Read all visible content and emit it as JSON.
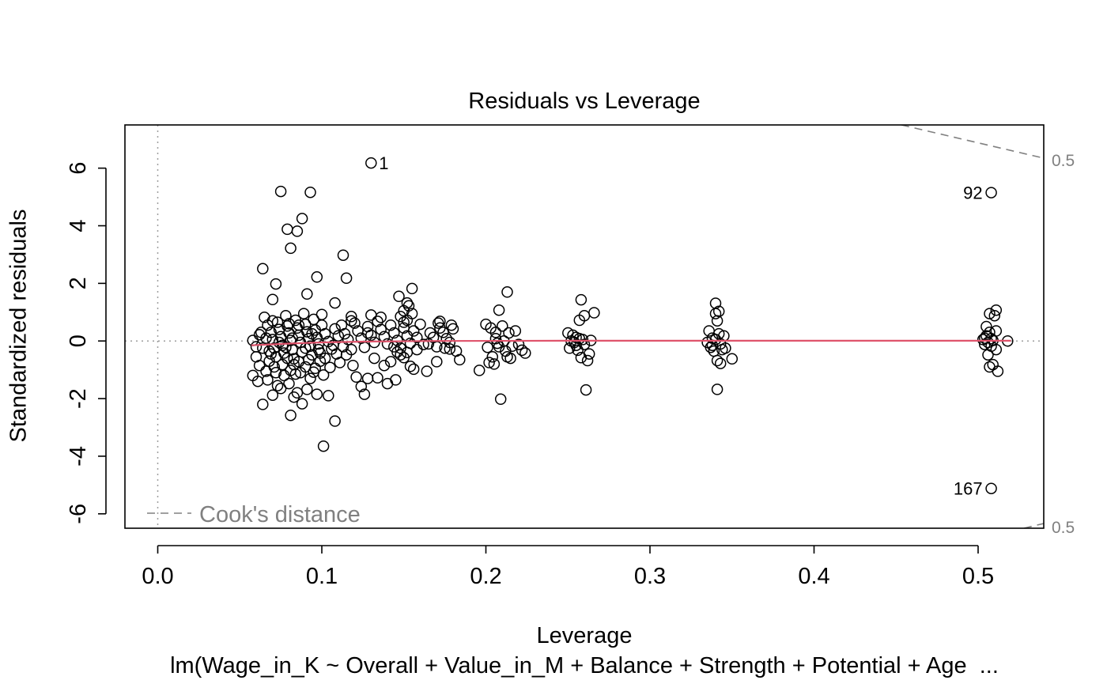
{
  "chart_data": {
    "type": "scatter",
    "title": "Residuals vs Leverage",
    "xlabel": "Leverage",
    "ylabel": "Standardized residuals",
    "caption": "lm(Wage_in_K ~ Overall + Value_in_M + Balance + Strength + Potential + Age  ...",
    "xlim": [
      -0.02,
      0.54
    ],
    "ylim": [
      -6.5,
      7.5
    ],
    "x_ticks": [
      "0.0",
      "0.1",
      "0.2",
      "0.3",
      "0.4",
      "0.5"
    ],
    "y_ticks": [
      "-6",
      "-4",
      "-2",
      "0",
      "2",
      "4",
      "6"
    ],
    "grid": false,
    "legend": {
      "position": "bottom-left",
      "entries": [
        {
          "label": "Cook's distance",
          "style": "dashed",
          "color": "#808080"
        }
      ]
    },
    "cook_contour_label": "0.5",
    "smoother_color": "#DF536B",
    "point_color": "#000000",
    "labeled_points": [
      {
        "label": "1",
        "x": 0.13,
        "y": 6.18,
        "side": "right"
      },
      {
        "label": "92",
        "x": 0.508,
        "y": 5.15,
        "side": "left"
      },
      {
        "label": "167",
        "x": 0.508,
        "y": -5.12,
        "side": "left"
      }
    ],
    "smoother": [
      [
        0.057,
        -0.15
      ],
      [
        0.08,
        -0.09
      ],
      [
        0.1,
        -0.05
      ],
      [
        0.13,
        -0.02
      ],
      [
        0.17,
        0.0
      ],
      [
        0.25,
        0.01
      ],
      [
        0.35,
        0.01
      ],
      [
        0.45,
        0.01
      ],
      [
        0.52,
        0.01
      ]
    ],
    "points": [
      [
        0.075,
        5.19
      ],
      [
        0.093,
        5.16
      ],
      [
        0.088,
        4.25
      ],
      [
        0.079,
        3.88
      ],
      [
        0.085,
        3.81
      ],
      [
        0.081,
        3.22
      ],
      [
        0.113,
        2.98
      ],
      [
        0.064,
        2.51
      ],
      [
        0.097,
        2.22
      ],
      [
        0.115,
        2.18
      ],
      [
        0.072,
        1.98
      ],
      [
        0.155,
        1.82
      ],
      [
        0.213,
        1.7
      ],
      [
        0.091,
        1.63
      ],
      [
        0.147,
        1.55
      ],
      [
        0.258,
        1.43
      ],
      [
        0.07,
        1.44
      ],
      [
        0.34,
        1.31
      ],
      [
        0.152,
        1.32
      ],
      [
        0.108,
        1.32
      ],
      [
        0.208,
        1.07
      ],
      [
        0.342,
        1.03
      ],
      [
        0.266,
        0.98
      ],
      [
        0.1,
        0.92
      ],
      [
        0.118,
        0.7
      ],
      [
        0.18,
        0.42
      ],
      [
        0.26,
        0.88
      ],
      [
        0.34,
        0.95
      ],
      [
        0.507,
        0.95
      ],
      [
        0.511,
        1.07
      ],
      [
        0.15,
        0.65
      ],
      [
        0.065,
        0.82
      ],
      [
        0.067,
        0.55
      ],
      [
        0.069,
        0.3
      ],
      [
        0.07,
        0.05
      ],
      [
        0.071,
        -0.25
      ],
      [
        0.072,
        -0.55
      ],
      [
        0.073,
        0.65
      ],
      [
        0.074,
        0.4
      ],
      [
        0.075,
        0.15
      ],
      [
        0.076,
        -0.15
      ],
      [
        0.077,
        -0.42
      ],
      [
        0.078,
        0.88
      ],
      [
        0.079,
        0.52
      ],
      [
        0.08,
        0.28
      ],
      [
        0.081,
        0.02
      ],
      [
        0.082,
        -0.3
      ],
      [
        0.083,
        -0.62
      ],
      [
        0.084,
        0.72
      ],
      [
        0.085,
        0.45
      ],
      [
        0.086,
        0.2
      ],
      [
        0.087,
        -0.05
      ],
      [
        0.088,
        -0.38
      ],
      [
        0.089,
        0.95
      ],
      [
        0.09,
        0.58
      ],
      [
        0.091,
        0.32
      ],
      [
        0.092,
        0.08
      ],
      [
        0.093,
        -0.18
      ],
      [
        0.094,
        -0.48
      ],
      [
        0.095,
        0.75
      ],
      [
        0.096,
        0.38
      ],
      [
        0.097,
        0.12
      ],
      [
        0.098,
        -0.1
      ],
      [
        0.099,
        -0.42
      ],
      [
        0.1,
        0.55
      ],
      [
        0.102,
        0.25
      ],
      [
        0.104,
        -0.02
      ],
      [
        0.106,
        -0.28
      ],
      [
        0.108,
        0.42
      ],
      [
        0.11,
        0.18
      ],
      [
        0.066,
        0.1
      ],
      [
        0.068,
        -0.35
      ],
      [
        0.074,
        -0.05
      ],
      [
        0.078,
        -0.22
      ],
      [
        0.082,
        0.1
      ],
      [
        0.086,
        0.55
      ],
      [
        0.09,
        -0.25
      ],
      [
        0.094,
        0.25
      ],
      [
        0.07,
        0.7
      ],
      [
        0.08,
        0.6
      ],
      [
        0.06,
        -0.55
      ],
      [
        0.062,
        -0.85
      ],
      [
        0.063,
        0.3
      ],
      [
        0.064,
        -0.25
      ],
      [
        0.066,
        -1.05
      ],
      [
        0.067,
        -1.35
      ],
      [
        0.068,
        -0.7
      ],
      [
        0.069,
        -0.45
      ],
      [
        0.071,
        -0.9
      ],
      [
        0.072,
        -1.1
      ],
      [
        0.073,
        -1.55
      ],
      [
        0.075,
        -1.65
      ],
      [
        0.076,
        -0.82
      ],
      [
        0.077,
        -1.2
      ],
      [
        0.079,
        -0.6
      ],
      [
        0.08,
        -1.48
      ],
      [
        0.081,
        -1.02
      ],
      [
        0.083,
        -0.82
      ],
      [
        0.084,
        -1.15
      ],
      [
        0.085,
        -1.8
      ],
      [
        0.086,
        -0.72
      ],
      [
        0.087,
        -1.1
      ],
      [
        0.088,
        -2.18
      ],
      [
        0.09,
        -0.9
      ],
      [
        0.091,
        -1.68
      ],
      [
        0.092,
        -0.65
      ],
      [
        0.095,
        -1.08
      ],
      [
        0.097,
        -1.85
      ],
      [
        0.099,
        -0.7
      ],
      [
        0.101,
        -1.18
      ],
      [
        0.064,
        -2.2
      ],
      [
        0.081,
        -2.58
      ],
      [
        0.101,
        -3.65
      ],
      [
        0.108,
        -2.78
      ],
      [
        0.058,
        0.02
      ],
      [
        0.06,
        -0.2
      ],
      [
        0.062,
        0.22
      ],
      [
        0.058,
        -1.2
      ],
      [
        0.061,
        -1.4
      ],
      [
        0.07,
        -1.88
      ],
      [
        0.083,
        -1.95
      ],
      [
        0.104,
        -1.9
      ],
      [
        0.093,
        -1.3
      ],
      [
        0.096,
        -0.95
      ],
      [
        0.098,
        -0.3
      ],
      [
        0.102,
        -0.6
      ],
      [
        0.105,
        -0.92
      ],
      [
        0.107,
        -0.15
      ],
      [
        0.109,
        -0.45
      ],
      [
        0.111,
        -0.75
      ],
      [
        0.113,
        -0.2
      ],
      [
        0.112,
        0.55
      ],
      [
        0.114,
        0.25
      ],
      [
        0.116,
        0.05
      ],
      [
        0.118,
        -0.3
      ],
      [
        0.12,
        0.62
      ],
      [
        0.122,
        0.35
      ],
      [
        0.124,
        0.1
      ],
      [
        0.126,
        -0.22
      ],
      [
        0.128,
        0.5
      ],
      [
        0.13,
        0.2
      ],
      [
        0.132,
        -0.05
      ],
      [
        0.134,
        0.68
      ],
      [
        0.136,
        0.4
      ],
      [
        0.138,
        0.15
      ],
      [
        0.14,
        -0.1
      ],
      [
        0.142,
        0.55
      ],
      [
        0.144,
        0.28
      ],
      [
        0.146,
        0.02
      ],
      [
        0.148,
        -0.25
      ],
      [
        0.15,
        0.45
      ],
      [
        0.152,
        0.18
      ],
      [
        0.154,
        -0.08
      ],
      [
        0.156,
        0.35
      ],
      [
        0.158,
        0.12
      ],
      [
        0.16,
        0.58
      ],
      [
        0.115,
        -0.48
      ],
      [
        0.119,
        -0.85
      ],
      [
        0.121,
        -1.25
      ],
      [
        0.124,
        -1.58
      ],
      [
        0.126,
        -1.85
      ],
      [
        0.128,
        -1.3
      ],
      [
        0.132,
        -0.6
      ],
      [
        0.134,
        -1.28
      ],
      [
        0.138,
        -0.85
      ],
      [
        0.142,
        -0.72
      ],
      [
        0.145,
        -1.35
      ],
      [
        0.148,
        -0.48
      ],
      [
        0.15,
        -0.58
      ],
      [
        0.152,
        -0.4
      ],
      [
        0.154,
        -0.88
      ],
      [
        0.156,
        -0.98
      ],
      [
        0.158,
        -0.3
      ],
      [
        0.162,
        -0.12
      ],
      [
        0.164,
        -1.05
      ],
      [
        0.14,
        -1.48
      ],
      [
        0.144,
        -0.2
      ],
      [
        0.146,
        -0.38
      ],
      [
        0.148,
        0.85
      ],
      [
        0.15,
        1.05
      ],
      [
        0.152,
        0.72
      ],
      [
        0.153,
        1.22
      ],
      [
        0.155,
        0.95
      ],
      [
        0.13,
        0.9
      ],
      [
        0.136,
        0.82
      ],
      [
        0.128,
        0.28
      ],
      [
        0.118,
        0.85
      ],
      [
        0.166,
        0.28
      ],
      [
        0.168,
        0.12
      ],
      [
        0.17,
        -0.2
      ],
      [
        0.171,
        0.62
      ],
      [
        0.172,
        0.45
      ],
      [
        0.174,
        0.3
      ],
      [
        0.176,
        0.08
      ],
      [
        0.178,
        -0.28
      ],
      [
        0.179,
        0.55
      ],
      [
        0.182,
        -0.35
      ],
      [
        0.184,
        -0.65
      ],
      [
        0.17,
        -0.72
      ],
      [
        0.175,
        -0.25
      ],
      [
        0.165,
        -0.1
      ],
      [
        0.172,
        0.68
      ],
      [
        0.178,
        -0.05
      ],
      [
        0.196,
        -1.02
      ],
      [
        0.2,
        0.58
      ],
      [
        0.201,
        -0.22
      ],
      [
        0.203,
        0.45
      ],
      [
        0.204,
        -0.55
      ],
      [
        0.205,
        -0.8
      ],
      [
        0.206,
        0.3
      ],
      [
        0.207,
        -0.08
      ],
      [
        0.208,
        -0.2
      ],
      [
        0.209,
        -2.02
      ],
      [
        0.21,
        0.52
      ],
      [
        0.212,
        -0.35
      ],
      [
        0.213,
        -0.55
      ],
      [
        0.214,
        0.28
      ],
      [
        0.216,
        -0.18
      ],
      [
        0.218,
        0.35
      ],
      [
        0.22,
        -0.12
      ],
      [
        0.222,
        -0.32
      ],
      [
        0.224,
        -0.42
      ],
      [
        0.202,
        -0.75
      ],
      [
        0.211,
        0.0
      ],
      [
        0.215,
        -0.6
      ],
      [
        0.206,
        0.08
      ],
      [
        0.25,
        0.28
      ],
      [
        0.251,
        -0.25
      ],
      [
        0.252,
        0.0
      ],
      [
        0.253,
        0.2
      ],
      [
        0.254,
        -0.05
      ],
      [
        0.255,
        0.12
      ],
      [
        0.256,
        -0.32
      ],
      [
        0.257,
        0.08
      ],
      [
        0.258,
        -0.58
      ],
      [
        0.259,
        0.05
      ],
      [
        0.26,
        -0.12
      ],
      [
        0.261,
        -1.7
      ],
      [
        0.262,
        -0.68
      ],
      [
        0.263,
        -0.45
      ],
      [
        0.264,
        0.02
      ],
      [
        0.257,
        0.72
      ],
      [
        0.255,
        -0.15
      ],
      [
        0.335,
        -0.05
      ],
      [
        0.336,
        0.35
      ],
      [
        0.337,
        -0.22
      ],
      [
        0.338,
        0.1
      ],
      [
        0.339,
        -0.35
      ],
      [
        0.34,
        0.05
      ],
      [
        0.341,
        -0.68
      ],
      [
        0.341,
        -1.68
      ],
      [
        0.342,
        0.25
      ],
      [
        0.343,
        -0.1
      ],
      [
        0.344,
        -0.3
      ],
      [
        0.345,
        0.18
      ],
      [
        0.346,
        -0.25
      ],
      [
        0.343,
        -0.78
      ],
      [
        0.35,
        -0.62
      ],
      [
        0.338,
        -0.15
      ],
      [
        0.341,
        0.7
      ],
      [
        0.503,
        0.05
      ],
      [
        0.504,
        -0.12
      ],
      [
        0.505,
        0.18
      ],
      [
        0.506,
        -0.05
      ],
      [
        0.506,
        -0.48
      ],
      [
        0.507,
        0.3
      ],
      [
        0.507,
        -0.9
      ],
      [
        0.508,
        0.08
      ],
      [
        0.508,
        -0.18
      ],
      [
        0.509,
        0.02
      ],
      [
        0.509,
        -0.82
      ],
      [
        0.51,
        0.88
      ],
      [
        0.511,
        0.35
      ],
      [
        0.511,
        -0.3
      ],
      [
        0.512,
        -1.05
      ],
      [
        0.518,
        0.0
      ],
      [
        0.505,
        0.5
      ],
      [
        0.504,
        0.1
      ]
    ]
  }
}
